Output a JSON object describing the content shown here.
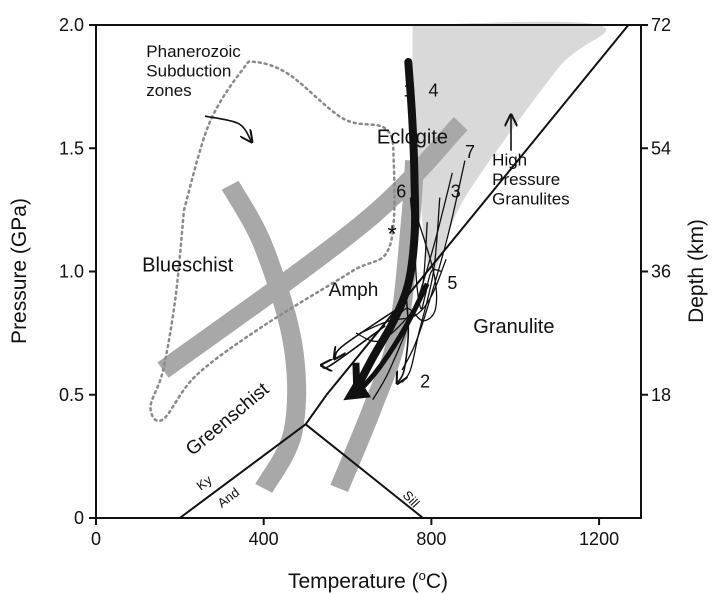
{
  "chart_data": {
    "type": "line",
    "xlabel": "Temperature (",
    "xlabel_sup": "o",
    "xlabel_unit": "C)",
    "ylabel": "Pressure (GPa)",
    "y2label": "Depth (km)",
    "xlim": [
      0,
      1300
    ],
    "ylim": [
      0,
      2.0
    ],
    "x_ticks": [
      0,
      400,
      800,
      1200
    ],
    "y_ticks": [
      0,
      0.5,
      1.0,
      1.5,
      2.0
    ],
    "x_tick_labels": [
      "0",
      "400",
      "800",
      "1200"
    ],
    "y_tick_labels": [
      "0",
      "0.5",
      "1.0",
      "1.5",
      "2.0"
    ],
    "y2_ticks": [
      {
        "p": 0.5,
        "label": "18"
      },
      {
        "p": 1.0,
        "label": "36"
      },
      {
        "p": 1.5,
        "label": "54"
      },
      {
        "p": 2.0,
        "label": "72"
      }
    ],
    "facies_labels": [
      {
        "text": "Eclogite",
        "x": 670,
        "y": 1.52,
        "size": 20
      },
      {
        "text": "Blueschist",
        "x": 110,
        "y": 1.0,
        "size": 20
      },
      {
        "text": "Amph",
        "x": 555,
        "y": 0.9,
        "size": 19
      },
      {
        "text": "Granulite",
        "x": 900,
        "y": 0.75,
        "size": 20
      },
      {
        "text": "Greenschist",
        "x": 230,
        "y": 0.25,
        "size": 19,
        "rotate": -40
      }
    ],
    "annotations": [
      {
        "lines": [
          "Phanerozoic",
          "Subduction",
          "zones"
        ],
        "x": 120,
        "y": 1.87,
        "size": 17
      },
      {
        "lines": [
          "High",
          "Pressure",
          "Granulites"
        ],
        "x": 945,
        "y": 1.43,
        "size": 17
      },
      {
        "lines": [
          "*"
        ],
        "x": 695,
        "y": 1.12,
        "size": 24
      }
    ],
    "path_labels": [
      {
        "text": "1",
        "x": 745,
        "y": 1.71
      },
      {
        "text": "4",
        "x": 805,
        "y": 1.71
      },
      {
        "text": "7",
        "x": 892,
        "y": 1.46
      },
      {
        "text": "6",
        "x": 728,
        "y": 1.3
      },
      {
        "text": "3",
        "x": 858,
        "y": 1.3
      },
      {
        "text": "5",
        "x": 850,
        "y": 0.93
      },
      {
        "text": "2",
        "x": 785,
        "y": 0.53
      }
    ],
    "mineral_labels": [
      {
        "text": "Ky",
        "x": 250,
        "y": 0.11,
        "rotate": -37
      },
      {
        "text": "And",
        "x": 300,
        "y": 0.04,
        "rotate": -37
      },
      {
        "text": "Sill",
        "x": 730,
        "y": 0.09,
        "rotate": 47
      }
    ],
    "series": [
      {
        "role": "hp-granulite-field",
        "points": [
          [
            755,
            2.0
          ],
          [
            1200,
            2.0
          ],
          [
            1100,
            1.82
          ],
          [
            880,
            1.3
          ],
          [
            800,
            1.0
          ],
          [
            770,
            1.4
          ],
          [
            755,
            1.85
          ]
        ]
      },
      {
        "role": "eclogite-boundary",
        "points": [
          [
            160,
            0.6
          ],
          [
            640,
            1.2
          ],
          [
            870,
            1.6
          ]
        ]
      },
      {
        "role": "blueschist-greenschist-boundary",
        "points": [
          [
            320,
            1.35
          ],
          [
            400,
            1.1
          ],
          [
            470,
            0.7
          ],
          [
            470,
            0.35
          ],
          [
            400,
            0.12
          ]
        ]
      },
      {
        "role": "amphibolite-granulite-boundary",
        "points": [
          [
            760,
            1.45
          ],
          [
            750,
            1.2
          ],
          [
            720,
            0.75
          ],
          [
            660,
            0.45
          ],
          [
            580,
            0.12
          ]
        ]
      },
      {
        "role": "granulite-solidus",
        "points": [
          [
            550,
            0.5
          ],
          [
            1270,
            2.0
          ]
        ]
      },
      {
        "role": "ky-sill",
        "points": [
          [
            500,
            0.38
          ],
          [
            550,
            0.5
          ]
        ]
      },
      {
        "role": "ky-and",
        "points": [
          [
            200,
            0.0
          ],
          [
            500,
            0.38
          ]
        ]
      },
      {
        "role": "and-sill",
        "points": [
          [
            500,
            0.38
          ],
          [
            780,
            0.0
          ]
        ]
      },
      {
        "role": "subduction-envelope",
        "points": [
          [
            210,
            1.25
          ],
          [
            270,
            1.6
          ],
          [
            350,
            1.82
          ],
          [
            380,
            1.85
          ],
          [
            460,
            1.8
          ],
          [
            590,
            1.62
          ],
          [
            690,
            1.58
          ],
          [
            710,
            1.45
          ],
          [
            700,
            1.1
          ],
          [
            610,
            1.0
          ],
          [
            400,
            0.78
          ],
          [
            240,
            0.58
          ],
          [
            160,
            0.4
          ],
          [
            130,
            0.45
          ],
          [
            160,
            0.6
          ],
          [
            190,
            0.9
          ],
          [
            210,
            1.25
          ]
        ]
      },
      {
        "role": "thin-path",
        "points": [
          [
            820,
            1.3
          ],
          [
            805,
            1.0
          ],
          [
            770,
            0.75
          ],
          [
            750,
            0.6
          ],
          [
            730,
            0.55
          ]
        ]
      },
      {
        "role": "thin-path",
        "points": [
          [
            880,
            1.45
          ],
          [
            840,
            1.15
          ],
          [
            790,
            0.85
          ],
          [
            760,
            0.7
          ],
          [
            730,
            0.6
          ]
        ]
      },
      {
        "role": "thin-path",
        "points": [
          [
            850,
            1.4
          ],
          [
            805,
            1.1
          ],
          [
            760,
            0.85
          ],
          [
            700,
            0.6
          ],
          [
            660,
            0.48
          ]
        ]
      },
      {
        "role": "thin-path",
        "points": [
          [
            760,
            1.25
          ],
          [
            805,
            1.0
          ],
          [
            810,
            0.85
          ],
          [
            780,
            0.8
          ],
          [
            740,
            0.85
          ],
          [
            700,
            0.76
          ]
        ]
      },
      {
        "role": "thin-path",
        "points": [
          [
            790,
            1.2
          ],
          [
            780,
            0.95
          ],
          [
            760,
            0.85
          ],
          [
            680,
            0.72
          ],
          [
            620,
            0.75
          ]
        ]
      },
      {
        "role": "thin-path",
        "points": [
          [
            835,
            1.05
          ],
          [
            800,
            0.9
          ],
          [
            760,
            0.82
          ],
          [
            700,
            0.8
          ],
          [
            630,
            0.75
          ]
        ]
      },
      {
        "role": "thin-path",
        "points": [
          [
            750,
            1.3
          ],
          [
            760,
            1.1
          ],
          [
            765,
            0.95
          ],
          [
            775,
            0.85
          ],
          [
            785,
            0.9
          ],
          [
            800,
            1.0
          ],
          [
            825,
            1.0
          ]
        ]
      },
      {
        "role": "thin-arrow",
        "points": [
          [
            720,
            0.85
          ],
          [
            590,
            0.7
          ],
          [
            570,
            0.65
          ]
        ]
      },
      {
        "role": "thin-arrow",
        "points": [
          [
            690,
            0.78
          ],
          [
            560,
            0.62
          ],
          [
            540,
            0.62
          ]
        ]
      },
      {
        "role": "thin-arrow",
        "points": [
          [
            740,
            0.9
          ],
          [
            745,
            0.75
          ],
          [
            735,
            0.6
          ],
          [
            720,
            0.55
          ]
        ]
      },
      {
        "role": "thick-path",
        "points": [
          [
            745,
            1.85
          ],
          [
            755,
            1.6
          ],
          [
            760,
            1.35
          ],
          [
            760,
            1.15
          ],
          [
            745,
            0.95
          ],
          [
            710,
            0.8
          ],
          [
            660,
            0.65
          ],
          [
            620,
            0.52
          ]
        ]
      },
      {
        "role": "thick-arrow",
        "points": [
          [
            790,
            0.95
          ],
          [
            740,
            0.78
          ],
          [
            680,
            0.62
          ],
          [
            630,
            0.52
          ],
          [
            610,
            0.5
          ]
        ]
      },
      {
        "role": "thick-stub",
        "points": [
          [
            620,
            0.63
          ],
          [
            622,
            0.52
          ]
        ]
      },
      {
        "role": "pointer",
        "points": [
          [
            260,
            1.63
          ],
          [
            340,
            1.6
          ],
          [
            370,
            1.53
          ]
        ]
      },
      {
        "role": "pointer",
        "points": [
          [
            990,
            1.49
          ],
          [
            990,
            1.63
          ]
        ]
      }
    ]
  }
}
